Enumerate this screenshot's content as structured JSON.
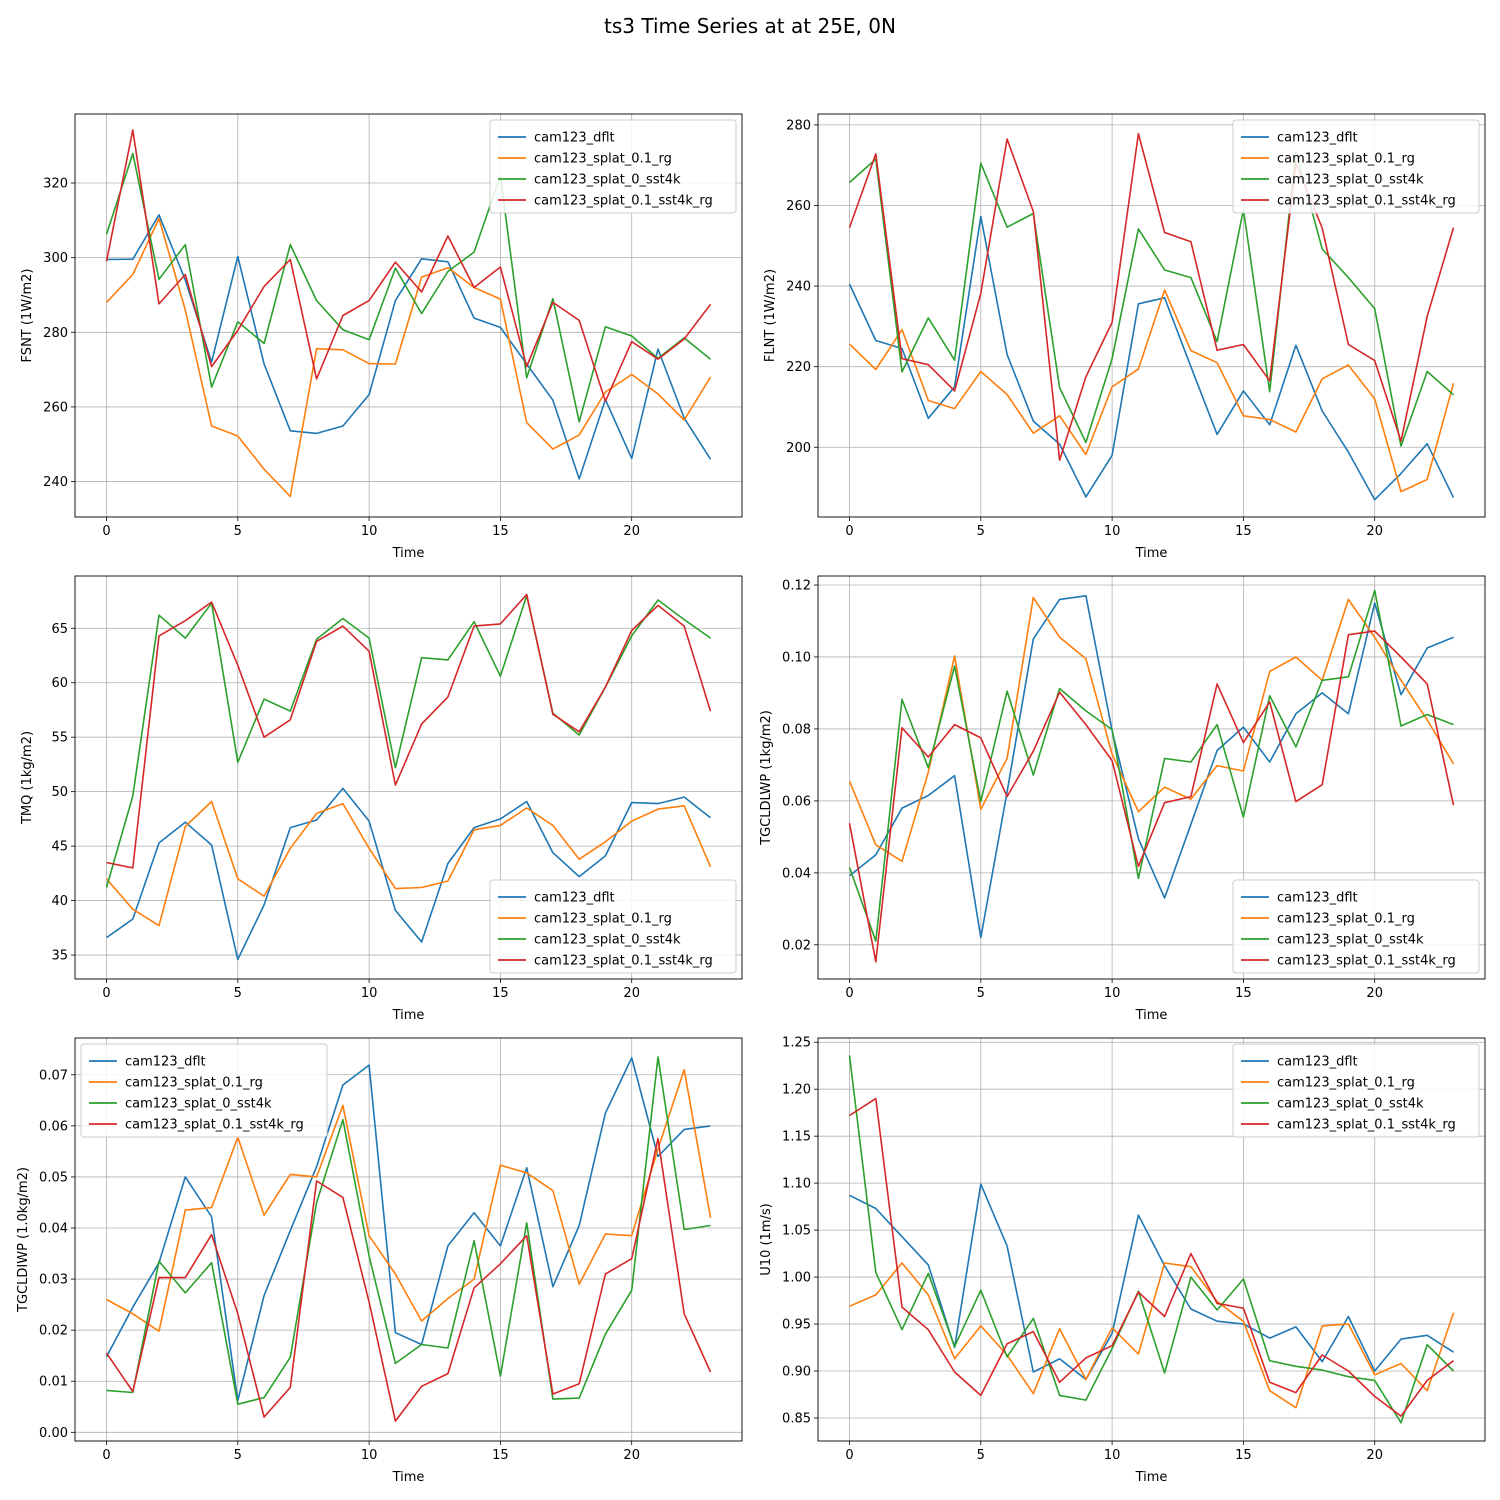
{
  "figure": {
    "title": "ts3 Time Series at at 25E, 0N"
  },
  "colors": {
    "cam123_dflt": "#1f77b4",
    "cam123_splat_0.1_rg": "#ff7f0e",
    "cam123_splat_0_sst4k": "#2ca02c",
    "cam123_splat_0.1_sst4k_rg": "#d62728",
    "grid": "#b0b0b0"
  },
  "chart_data": [
    {
      "type": "line",
      "title": "",
      "xlabel": "Time",
      "ylabel": "FSNT (1W/m2)",
      "xlim": [
        -1.2,
        24.2
      ],
      "ylim": [
        230.5,
        338.5
      ],
      "xticks": [
        0,
        5,
        10,
        15,
        20
      ],
      "xtick_labels": [
        "0",
        "5",
        "10",
        "15",
        "20"
      ],
      "yticks": [
        240,
        260,
        280,
        300,
        320
      ],
      "ytick_labels": [
        "240",
        "260",
        "280",
        "300",
        "320"
      ],
      "legend": "upper right",
      "x": [
        0,
        1,
        2,
        3,
        4,
        5,
        6,
        7,
        8,
        9,
        10,
        11,
        12,
        13,
        14,
        15,
        16,
        17,
        18,
        19,
        20,
        21,
        22,
        23
      ],
      "series": [
        {
          "name": "cam123_dflt",
          "values": [
            299.5,
            299.6,
            311.5,
            294,
            272,
            300.3,
            271.5,
            253.6,
            252.9,
            254.9,
            263.3,
            288.5,
            299.7,
            298.9,
            283.8,
            281.3,
            271.5,
            261.8,
            240.7,
            262,
            246.2,
            275.5,
            257,
            246
          ]
        },
        {
          "name": "cam123_splat_0.1_rg",
          "values": [
            288,
            295.5,
            310.5,
            286,
            254.9,
            252.2,
            243.3,
            236,
            275.6,
            275.3,
            271.6,
            271.5,
            294.8,
            297.3,
            292,
            288.9,
            255.8,
            248.7,
            252.5,
            264,
            268.7,
            263.5,
            256.5,
            268
          ]
        },
        {
          "name": "cam123_splat_0_sst4k",
          "values": [
            306.3,
            327.9,
            294.2,
            303.5,
            265.3,
            282.8,
            277,
            303.5,
            288.5,
            280.7,
            278,
            297.2,
            285,
            296.3,
            301.5,
            322,
            267.8,
            289,
            256,
            281.5,
            279,
            273,
            278.5,
            272.8
          ]
        },
        {
          "name": "cam123_splat_0.1_sst4k_rg",
          "values": [
            299,
            334.2,
            287.6,
            295.5,
            270.8,
            280.5,
            292.3,
            299.5,
            267.5,
            284.5,
            288.5,
            298.8,
            290.8,
            305.8,
            292,
            297.5,
            270.8,
            288,
            283.2,
            261.5,
            277.5,
            272.8,
            278.2,
            287.5
          ]
        }
      ]
    },
    {
      "type": "line",
      "title": "",
      "xlabel": "Time",
      "ylabel": "FLNT (1W/m2)",
      "xlim": [
        -1.2,
        24.2
      ],
      "ylim": [
        182.7,
        282.7
      ],
      "xticks": [
        0,
        5,
        10,
        15,
        20
      ],
      "xtick_labels": [
        "0",
        "5",
        "10",
        "15",
        "20"
      ],
      "yticks": [
        200,
        220,
        240,
        260,
        280
      ],
      "ytick_labels": [
        "200",
        "220",
        "240",
        "260",
        "280"
      ],
      "legend": "upper right",
      "x": [
        0,
        1,
        2,
        3,
        4,
        5,
        6,
        7,
        8,
        9,
        10,
        11,
        12,
        13,
        14,
        15,
        16,
        17,
        18,
        19,
        20,
        21,
        22,
        23
      ],
      "series": [
        {
          "name": "cam123_dflt",
          "values": [
            240.5,
            226.5,
            224.5,
            207.2,
            215,
            257.3,
            223,
            206.5,
            200.8,
            187.7,
            198,
            235.6,
            237.1,
            220,
            203.2,
            214,
            205.6,
            225.3,
            209,
            198.8,
            187,
            193.5,
            200.9,
            187.5
          ]
        },
        {
          "name": "cam123_splat_0.1_rg",
          "values": [
            225.6,
            219.3,
            229.2,
            211.6,
            209.6,
            218.8,
            213.1,
            203.5,
            207.8,
            198.2,
            215,
            219.4,
            239,
            224,
            221,
            207.8,
            206.9,
            203.8,
            217,
            220.4,
            212,
            189,
            192,
            215.9
          ]
        },
        {
          "name": "cam123_splat_0_sst4k",
          "values": [
            265.7,
            271.5,
            218.7,
            232.1,
            221.6,
            270.5,
            254.6,
            258,
            214.8,
            201.2,
            222,
            254.2,
            244,
            242.1,
            226.2,
            259,
            213.8,
            273.3,
            249.2,
            242.1,
            234.4,
            200.3,
            218.8,
            213
          ]
        },
        {
          "name": "cam123_splat_0.1_sst4k_rg",
          "values": [
            254.5,
            272.8,
            222,
            220.5,
            214,
            238.2,
            276.5,
            258.5,
            196.8,
            217.5,
            231,
            277.8,
            253.3,
            251,
            224.1,
            225.5,
            216.5,
            270.4,
            254.4,
            225.5,
            221.5,
            201.5,
            232.5,
            254.5
          ]
        }
      ]
    },
    {
      "type": "line",
      "title": "",
      "xlabel": "Time",
      "ylabel": "TMQ (1kg/m2)",
      "xlim": [
        -1.2,
        24.2
      ],
      "ylim": [
        32.8,
        69.8
      ],
      "xticks": [
        0,
        5,
        10,
        15,
        20
      ],
      "xtick_labels": [
        "0",
        "5",
        "10",
        "15",
        "20"
      ],
      "yticks": [
        35,
        40,
        45,
        50,
        55,
        60,
        65
      ],
      "ytick_labels": [
        "35",
        "40",
        "45",
        "50",
        "55",
        "60",
        "65"
      ],
      "legend": "lower right",
      "x": [
        0,
        1,
        2,
        3,
        4,
        5,
        6,
        7,
        8,
        9,
        10,
        11,
        12,
        13,
        14,
        15,
        16,
        17,
        18,
        19,
        20,
        21,
        22,
        23
      ],
      "series": [
        {
          "name": "cam123_dflt",
          "values": [
            36.6,
            38.3,
            45.3,
            47.2,
            45.1,
            34.6,
            39.6,
            46.7,
            47.4,
            50.3,
            47.3,
            39.1,
            36.2,
            43.4,
            46.7,
            47.5,
            49.1,
            44.4,
            42.2,
            44.1,
            49,
            48.9,
            49.5,
            47.6
          ]
        },
        {
          "name": "cam123_splat_0.1_rg",
          "values": [
            42,
            39.2,
            37.7,
            46.8,
            49.1,
            42,
            40.4,
            44.8,
            48,
            48.9,
            44.8,
            41.1,
            41.2,
            41.8,
            46.5,
            46.9,
            48.5,
            46.9,
            43.8,
            45.4,
            47.3,
            48.4,
            48.7,
            43.1
          ]
        },
        {
          "name": "cam123_splat_0_sst4k",
          "values": [
            41.2,
            49.6,
            66.2,
            64.1,
            67.3,
            52.7,
            58.5,
            57.4,
            64,
            65.9,
            64.1,
            52.2,
            62.3,
            62.1,
            65.6,
            60.6,
            68,
            57.2,
            55.2,
            59.6,
            64.3,
            67.6,
            65.8,
            64.1
          ]
        },
        {
          "name": "cam123_splat_0.1_sst4k_rg",
          "values": [
            43.5,
            43,
            64.3,
            65.7,
            67.4,
            61.6,
            55,
            56.6,
            63.8,
            65.2,
            62.9,
            50.6,
            56.2,
            58.7,
            65.2,
            65.4,
            68.1,
            57.1,
            55.5,
            59.6,
            64.8,
            67.1,
            65.2,
            57.4
          ]
        }
      ]
    },
    {
      "type": "line",
      "title": "",
      "xlabel": "Time",
      "ylabel": "TGCLDLWP (1kg/m2)",
      "xlim": [
        -1.2,
        24.2
      ],
      "ylim": [
        0.0105,
        0.1225
      ],
      "xticks": [
        0,
        5,
        10,
        15,
        20
      ],
      "xtick_labels": [
        "0",
        "5",
        "10",
        "15",
        "20"
      ],
      "yticks": [
        0.02,
        0.04,
        0.06,
        0.08,
        0.1,
        0.12
      ],
      "ytick_labels": [
        "0.02",
        "0.04",
        "0.06",
        "0.08",
        "0.10",
        "0.12"
      ],
      "legend": "lower right",
      "x": [
        0,
        1,
        2,
        3,
        4,
        5,
        6,
        7,
        8,
        9,
        10,
        11,
        12,
        13,
        14,
        15,
        16,
        17,
        18,
        19,
        20,
        21,
        22,
        23
      ],
      "series": [
        {
          "name": "cam123_dflt",
          "values": [
            0.0392,
            0.045,
            0.058,
            0.0615,
            0.067,
            0.022,
            0.0625,
            0.105,
            0.116,
            0.117,
            0.0795,
            0.0495,
            0.033,
            0.0535,
            0.074,
            0.0805,
            0.0708,
            0.0842,
            0.09,
            0.0842,
            0.115,
            0.0895,
            0.1025,
            0.1055
          ]
        },
        {
          "name": "cam123_splat_0.1_rg",
          "values": [
            0.0655,
            0.0478,
            0.0432,
            0.068,
            0.1003,
            0.0577,
            0.0718,
            0.1165,
            0.1055,
            0.0995,
            0.073,
            0.057,
            0.0638,
            0.0605,
            0.0698,
            0.0683,
            0.096,
            0.1,
            0.0935,
            0.116,
            0.1055,
            0.0935,
            0.0825,
            0.0703
          ]
        },
        {
          "name": "cam123_splat_0_sst4k",
          "values": [
            0.0415,
            0.021,
            0.0882,
            0.0692,
            0.0975,
            0.0598,
            0.0905,
            0.0672,
            0.0912,
            0.085,
            0.0798,
            0.0385,
            0.0718,
            0.0708,
            0.0812,
            0.0555,
            0.0892,
            0.075,
            0.0935,
            0.0945,
            0.1185,
            0.0808,
            0.084,
            0.0812
          ]
        },
        {
          "name": "cam123_splat_0.1_sst4k_rg",
          "values": [
            0.0538,
            0.0153,
            0.0803,
            0.0722,
            0.0812,
            0.0775,
            0.0612,
            0.0738,
            0.0902,
            0.0812,
            0.0712,
            0.0418,
            0.0595,
            0.0612,
            0.0925,
            0.0762,
            0.0875,
            0.0598,
            0.0645,
            0.1062,
            0.1072,
            0.1,
            0.0925,
            0.0588
          ]
        }
      ]
    },
    {
      "type": "line",
      "title": "",
      "xlabel": "Time",
      "ylabel": "TGCLDIWP (1.0kg/m2)",
      "xlim": [
        -1.2,
        24.2
      ],
      "ylim": [
        -0.0017,
        0.0772
      ],
      "xticks": [
        0,
        5,
        10,
        15,
        20
      ],
      "xtick_labels": [
        "0",
        "5",
        "10",
        "15",
        "20"
      ],
      "yticks": [
        0.0,
        0.01,
        0.02,
        0.03,
        0.04,
        0.05,
        0.06,
        0.07
      ],
      "ytick_labels": [
        "0.00",
        "0.01",
        "0.02",
        "0.03",
        "0.04",
        "0.05",
        "0.06",
        "0.07"
      ],
      "legend": "upper left",
      "x": [
        0,
        1,
        2,
        3,
        4,
        5,
        6,
        7,
        8,
        9,
        10,
        11,
        12,
        13,
        14,
        15,
        16,
        17,
        18,
        19,
        20,
        21,
        22,
        23
      ],
      "series": [
        {
          "name": "cam123_dflt",
          "values": [
            0.0148,
            0.0245,
            0.0332,
            0.05,
            0.0422,
            0.0062,
            0.0268,
            0.0395,
            0.052,
            0.068,
            0.0719,
            0.0195,
            0.0172,
            0.0365,
            0.043,
            0.0365,
            0.0518,
            0.0285,
            0.0405,
            0.0625,
            0.0733,
            0.054,
            0.0593,
            0.06
          ]
        },
        {
          "name": "cam123_splat_0.1_rg",
          "values": [
            0.026,
            0.0232,
            0.0198,
            0.0435,
            0.044,
            0.0578,
            0.0425,
            0.0505,
            0.05,
            0.064,
            0.0385,
            0.031,
            0.0218,
            0.0262,
            0.03,
            0.0523,
            0.0508,
            0.0473,
            0.029,
            0.0388,
            0.0385,
            0.0555,
            0.071,
            0.042
          ]
        },
        {
          "name": "cam123_splat_0_sst4k",
          "values": [
            0.0082,
            0.0078,
            0.0335,
            0.0273,
            0.0332,
            0.0055,
            0.0068,
            0.0147,
            0.045,
            0.0612,
            0.0345,
            0.0135,
            0.0172,
            0.0165,
            0.0375,
            0.011,
            0.041,
            0.0065,
            0.0067,
            0.0192,
            0.0278,
            0.0735,
            0.0397,
            0.0405
          ]
        },
        {
          "name": "cam123_splat_0.1_sst4k_rg",
          "values": [
            0.0155,
            0.008,
            0.0303,
            0.0303,
            0.0387,
            0.0232,
            0.003,
            0.0088,
            0.0492,
            0.046,
            0.0255,
            0.0022,
            0.009,
            0.0115,
            0.0283,
            0.033,
            0.0385,
            0.0075,
            0.0095,
            0.031,
            0.034,
            0.0575,
            0.0232,
            0.0118
          ]
        }
      ]
    },
    {
      "type": "line",
      "title": "",
      "xlabel": "Time",
      "ylabel": "U10 (1m/s)",
      "xlim": [
        -1.2,
        24.2
      ],
      "ylim": [
        0.8255,
        1.2545
      ],
      "xticks": [
        0,
        5,
        10,
        15,
        20
      ],
      "xtick_labels": [
        "0",
        "5",
        "10",
        "15",
        "20"
      ],
      "yticks": [
        0.85,
        0.9,
        0.95,
        1.0,
        1.05,
        1.1,
        1.15,
        1.2,
        1.25
      ],
      "ytick_labels": [
        "0.85",
        "0.90",
        "0.95",
        "1.00",
        "1.05",
        "1.10",
        "1.15",
        "1.20",
        "1.25"
      ],
      "legend": "upper right",
      "x": [
        0,
        1,
        2,
        3,
        4,
        5,
        6,
        7,
        8,
        9,
        10,
        11,
        12,
        13,
        14,
        15,
        16,
        17,
        18,
        19,
        20,
        21,
        22,
        23
      ],
      "series": [
        {
          "name": "cam123_dflt",
          "values": [
            1.087,
            1.073,
            1.043,
            1.013,
            0.925,
            1.099,
            1.033,
            0.899,
            0.913,
            0.891,
            0.94,
            1.066,
            1.012,
            0.966,
            0.953,
            0.95,
            0.935,
            0.947,
            0.91,
            0.958,
            0.9,
            0.934,
            0.938,
            0.92
          ]
        },
        {
          "name": "cam123_splat_0.1_rg",
          "values": [
            0.969,
            0.981,
            1.015,
            0.981,
            0.913,
            0.948,
            0.917,
            0.876,
            0.945,
            0.891,
            0.946,
            0.918,
            1.015,
            1.011,
            0.974,
            0.953,
            0.879,
            0.861,
            0.948,
            0.95,
            0.896,
            0.908,
            0.879,
            0.962
          ]
        },
        {
          "name": "cam123_splat_0_sst4k",
          "values": [
            1.236,
            1.005,
            0.944,
            1.004,
            0.926,
            0.986,
            0.915,
            0.956,
            0.874,
            0.869,
            0.924,
            0.985,
            0.898,
            1.0,
            0.965,
            0.998,
            0.911,
            0.905,
            0.901,
            0.894,
            0.89,
            0.845,
            0.928,
            0.9
          ]
        },
        {
          "name": "cam123_splat_0.1_sst4k_rg",
          "values": [
            1.172,
            1.19,
            0.968,
            0.944,
            0.899,
            0.874,
            0.929,
            0.942,
            0.888,
            0.914,
            0.927,
            0.984,
            0.958,
            1.025,
            0.972,
            0.967,
            0.888,
            0.877,
            0.917,
            0.9,
            0.873,
            0.852,
            0.89,
            0.911
          ]
        }
      ]
    }
  ]
}
